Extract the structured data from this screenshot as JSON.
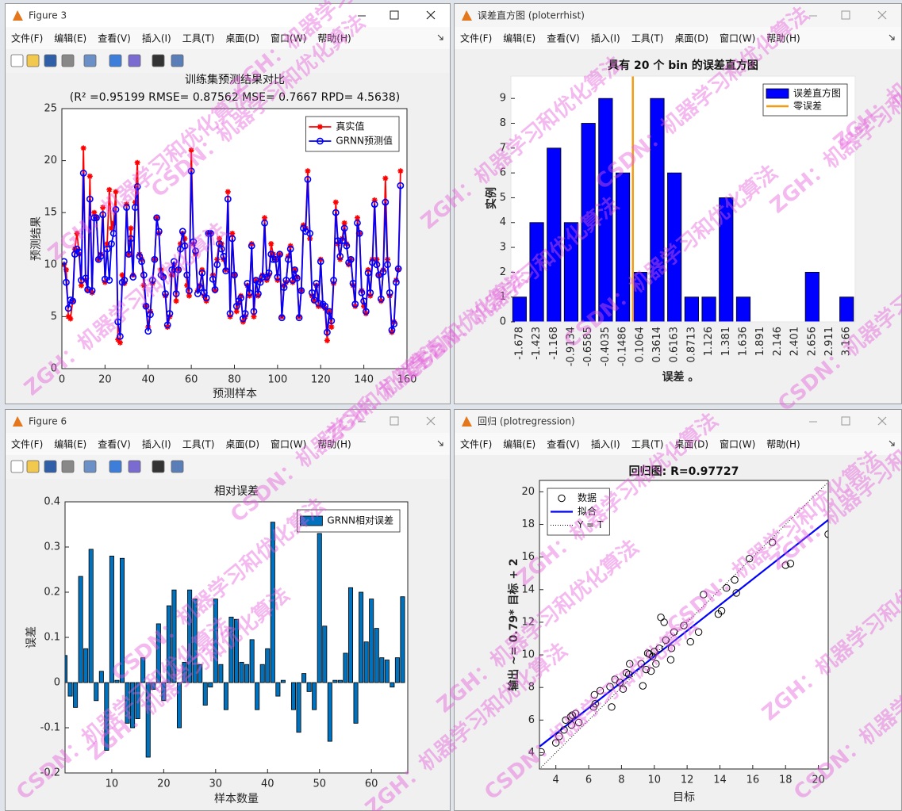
{
  "menu": [
    "文件(F)",
    "编辑(E)",
    "查看(V)",
    "插入(I)",
    "工具(T)",
    "桌面(D)",
    "窗口(W)",
    "帮助(H)"
  ],
  "windows": [
    {
      "title": "Figure 3"
    },
    {
      "title": "误差直方图 (ploterrhist)"
    },
    {
      "title": "Figure 6"
    },
    {
      "title": "回归 (plotregression)"
    }
  ],
  "watermark": [
    "ZGH：机器学习和优化算法",
    "CSDN：机器学习和优化算法"
  ],
  "chart_data": [
    {
      "type": "line",
      "title": "训练集预测结果对比",
      "subtitle": "(R² =0.95199 RMSE= 0.87562 MSE= 0.7667 RPD= 4.5638)",
      "x_label": "预测样本",
      "y_label": "预测结果",
      "legend": "upper right",
      "xlim": [
        0,
        160
      ],
      "xticks": [
        0,
        20,
        40,
        60,
        80,
        100,
        120,
        140,
        160
      ],
      "ylim": [
        0,
        25
      ],
      "yticks": [
        0,
        5,
        10,
        15,
        20,
        25
      ],
      "x": [
        1,
        2,
        3,
        4,
        5,
        6,
        7,
        8,
        9,
        10,
        11,
        12,
        13,
        14,
        15,
        16,
        17,
        18,
        19,
        20,
        21,
        22,
        23,
        24,
        25,
        26,
        27,
        28,
        29,
        30,
        31,
        32,
        33,
        34,
        35,
        36,
        37,
        38,
        39,
        40,
        41,
        42,
        43,
        44,
        45,
        46,
        47,
        48,
        49,
        50,
        51,
        52,
        53,
        54,
        55,
        56,
        57,
        58,
        59,
        60,
        61,
        62,
        63,
        64,
        65,
        66,
        67,
        68,
        69,
        70,
        71,
        72,
        73,
        74,
        75,
        76,
        77,
        78,
        79,
        80,
        81,
        82,
        83,
        84,
        85,
        86,
        87,
        88,
        89,
        90,
        91,
        92,
        93,
        94,
        95,
        96,
        97,
        98,
        99,
        100,
        101,
        102,
        103,
        104,
        105,
        106,
        107,
        108,
        109,
        110,
        111,
        112,
        113,
        114,
        115,
        116,
        117,
        118,
        119,
        120,
        121,
        122,
        123,
        124,
        125,
        126,
        127,
        128,
        129,
        130,
        131,
        132,
        133,
        134,
        135,
        136,
        137,
        138,
        139,
        140,
        141,
        142,
        143,
        144,
        145,
        146,
        147,
        148,
        149,
        150,
        151,
        152,
        153,
        154,
        155,
        156,
        157
      ],
      "series": [
        {
          "name": "真实值",
          "color": "#ff0000",
          "marker": "star",
          "values": [
            10,
            9.5,
            5,
            4.8,
            6.5,
            11.5,
            13,
            11,
            8,
            21.2,
            8.5,
            7.5,
            18.5,
            7.3,
            15,
            14.5,
            10.5,
            11,
            15.5,
            8.3,
            12,
            17.2,
            13.5,
            14,
            17,
            2.8,
            2.5,
            9,
            8.2,
            15.8,
            11,
            13.5,
            9,
            16,
            19.8,
            11,
            10.5,
            8,
            6,
            4,
            5.5,
            8.2,
            10.5,
            14.5,
            13,
            9.5,
            8.8,
            7,
            4,
            5,
            9,
            10,
            6.5,
            9.5,
            12,
            13,
            12.5,
            8,
            7,
            21,
            12,
            11,
            7.5,
            8,
            9.5,
            7,
            6.5,
            13,
            13,
            9,
            7.5,
            10.5,
            12.5,
            12,
            10.5,
            9.5,
            17,
            5,
            13,
            9,
            5.5,
            6.3,
            7,
            4.5,
            5,
            8,
            7,
            12,
            5,
            8.5,
            7,
            8.5,
            9,
            14.5,
            8.5,
            9,
            12,
            11,
            10.5,
            8.5,
            11,
            5,
            8,
            8.3,
            10.8,
            11.8,
            8.3,
            9.5,
            8.8,
            5,
            7.5,
            13.8,
            13.5,
            19,
            12.5,
            7,
            6.5,
            8,
            6,
            10.5,
            6,
            5.8,
            2.7,
            5.5,
            4,
            8.2,
            16,
            12,
            10.5,
            12.5,
            14,
            12,
            10,
            10.5,
            8,
            6,
            14.5,
            13,
            7.5,
            6,
            5.3,
            9.5,
            7,
            10.5,
            16.2,
            10.5,
            9,
            6.5,
            9.5,
            18.3,
            10.5,
            7,
            3.5,
            4.5,
            8.5,
            9.5,
            19
          ]
        },
        {
          "name": "GRNN预测值",
          "color": "#0000ff",
          "marker": "circle",
          "values": [
            10.3,
            8.3,
            5.8,
            6.6,
            6.5,
            11,
            11.5,
            11.2,
            8.5,
            18.8,
            8.7,
            7.6,
            16.3,
            7.5,
            14.5,
            14.5,
            10.5,
            10.8,
            14.8,
            8.6,
            11.5,
            8.5,
            12,
            13,
            15.3,
            4.5,
            3.1,
            8.3,
            8.5,
            15.5,
            11,
            12.5,
            8.8,
            15.5,
            17.5,
            10.8,
            10.3,
            9,
            6,
            3.6,
            5.2,
            8.5,
            10.5,
            14.5,
            13.2,
            9,
            8.8,
            7.2,
            4.2,
            5.3,
            9.5,
            10.3,
            7.2,
            9.5,
            11.5,
            13.2,
            11.8,
            9,
            7.5,
            19,
            12.2,
            11.3,
            7.2,
            7.8,
            9.2,
            7.3,
            6.8,
            13,
            13,
            8.6,
            7.6,
            10,
            12,
            11.5,
            10.8,
            9.4,
            16.3,
            5.3,
            12.5,
            9,
            6,
            6.5,
            6.8,
            4.8,
            5.3,
            8.2,
            7.3,
            11.8,
            5.5,
            8.5,
            7.2,
            8.3,
            8.8,
            14,
            8.8,
            9.2,
            11,
            10.5,
            10.5,
            8.8,
            11,
            4.9,
            7.8,
            8.5,
            10.5,
            11.5,
            8.5,
            9.5,
            8.7,
            4.9,
            7.5,
            13.5,
            13.2,
            18.2,
            13,
            7.3,
            6.6,
            8.2,
            6.3,
            10.3,
            6.2,
            6,
            3.5,
            5.5,
            4.6,
            8.5,
            15,
            12.3,
            10.8,
            12.3,
            13.5,
            11.8,
            10.2,
            10.5,
            8.2,
            6.2,
            14,
            13,
            7.3,
            6.5,
            5.5,
            9.2,
            7.3,
            10.2,
            15.8,
            10,
            9,
            6.7,
            9.3,
            16,
            10,
            7.3,
            3.7,
            4.3,
            8.3,
            9.6,
            17.6
          ]
        }
      ]
    },
    {
      "type": "bar",
      "title": "具有 20 个 bin 的误差直方图",
      "x_label": "误差 。",
      "y_label": "实例",
      "legend": "upper right",
      "categories": [
        -1.678,
        -1.423,
        -1.168,
        -0.9134,
        -0.6585,
        -0.4035,
        -0.1486,
        0.1064,
        0.3614,
        0.6163,
        0.8713,
        1.126,
        1.381,
        1.636,
        1.891,
        2.146,
        2.401,
        2.656,
        2.911,
        3.166
      ],
      "xlim": [
        -1.8055,
        3.2925
      ],
      "ylim": [
        0,
        9.9
      ],
      "yticks": [
        0,
        1,
        2,
        3,
        4,
        5,
        6,
        7,
        8,
        9
      ],
      "series": [
        {
          "name": "误差直方图",
          "color": "#0000ff",
          "values": [
            1,
            4,
            7,
            4,
            8,
            9,
            6,
            2,
            9,
            6,
            1,
            1,
            5,
            1,
            0,
            0,
            0,
            2,
            0,
            1
          ]
        }
      ],
      "zero_line": {
        "name": "零误差",
        "color": "#f39c12",
        "value": 0
      }
    },
    {
      "type": "bar",
      "title": "相对误差",
      "x_label": "样本数量",
      "y_label": "误差",
      "legend": "upper right",
      "x": [
        1,
        2,
        3,
        4,
        5,
        6,
        7,
        8,
        9,
        10,
        11,
        12,
        13,
        14,
        15,
        16,
        17,
        18,
        19,
        20,
        21,
        22,
        23,
        24,
        25,
        26,
        27,
        28,
        29,
        30,
        31,
        32,
        33,
        34,
        35,
        36,
        37,
        38,
        39,
        40,
        41,
        42,
        43,
        44,
        45,
        46,
        47,
        48,
        49,
        50,
        51,
        52,
        53,
        54,
        55,
        56,
        57,
        58,
        59,
        60,
        61,
        62,
        63,
        64,
        65,
        66
      ],
      "xlim": [
        1,
        67
      ],
      "xticks": [
        10,
        20,
        30,
        40,
        50,
        60
      ],
      "ylim": [
        -0.2,
        0.4
      ],
      "yticks": [
        -0.2,
        -0.1,
        0,
        0.1,
        0.2,
        0.3,
        0.4
      ],
      "series": [
        {
          "name": "GRNN相对误差",
          "color": "#0072bd",
          "values": [
            0.06,
            -0.03,
            -0.055,
            0.235,
            0.075,
            0.295,
            -0.04,
            0.025,
            -0.15,
            0.28,
            0.005,
            0.275,
            -0.09,
            -0.1,
            -0.08,
            0.055,
            -0.165,
            -0.015,
            0.13,
            -0.04,
            0.17,
            0.205,
            -0.1,
            0.045,
            0.205,
            0.185,
            0.04,
            -0.05,
            -0.01,
            0.185,
            0.04,
            -0.06,
            0.145,
            0.14,
            0.045,
            0.04,
            0.095,
            -0.06,
            0.04,
            0.075,
            0.355,
            -0.03,
            0.005,
            0,
            -0.06,
            -0.11,
            0.02,
            -0.02,
            -0.06,
            0.33,
            0.125,
            -0.13,
            0.005,
            0.005,
            0.065,
            0.21,
            -0.09,
            0.2,
            0.09,
            0.185,
            0.12,
            0.055,
            0.05,
            -0.01,
            0.055,
            0.19
          ]
        }
      ]
    },
    {
      "type": "scatter",
      "title": "回归图: R=0.97727",
      "x_label": "目标",
      "y_label": "输出 ~= 0.79* 目标 + 2",
      "legend": "upper left",
      "xlim": [
        3,
        20.6
      ],
      "xticks": [
        4,
        6,
        8,
        10,
        12,
        14,
        16,
        18,
        20
      ],
      "ylim": [
        3,
        20.7
      ],
      "yticks": [
        4,
        6,
        8,
        10,
        12,
        14,
        16,
        18,
        20
      ],
      "series": [
        {
          "name": "数据",
          "color": "#000000",
          "x": [
            3.1,
            4.0,
            4.2,
            4.5,
            4.6,
            4.9,
            5.0,
            5.2,
            5.4,
            4.95,
            6.3,
            6.4,
            6.35,
            6.7,
            7.3,
            7.4,
            7.6,
            7.9,
            8.1,
            8.3,
            8.5,
            8.45,
            9.2,
            9.3,
            9.5,
            9.6,
            9.8,
            9.9,
            10.1,
            10.3,
            10.4,
            10.6,
            10.7,
            11.0,
            11.05,
            11.2,
            11.8,
            12.2,
            12.7,
            13.0,
            13.9,
            14.1,
            14.4,
            14.9,
            15.0,
            15.8,
            17.2,
            18.0,
            18.3,
            20.6,
            10.0,
            9.7
          ],
          "values": [
            4.05,
            4.6,
            5.0,
            5.4,
            6.0,
            6.2,
            6.3,
            6.4,
            5.85,
            5.7,
            6.8,
            7.0,
            7.55,
            7.8,
            8.05,
            6.8,
            8.5,
            8.3,
            7.9,
            8.9,
            9.45,
            8.8,
            9.45,
            8.1,
            9.1,
            10.1,
            9.0,
            9.9,
            9.45,
            10.4,
            12.3,
            12.0,
            10.9,
            9.7,
            10.4,
            11.4,
            11.8,
            10.8,
            11.4,
            13.7,
            12.5,
            12.7,
            14.1,
            14.6,
            13.8,
            15.9,
            16.9,
            15.5,
            15.6,
            17.4,
            10.2,
            10.05
          ]
        }
      ],
      "fit": {
        "name": "拟合",
        "color": "#0000ff",
        "slope": 0.79,
        "intercept": 2
      },
      "identity": {
        "name": "Y = T",
        "color": "#000000"
      }
    }
  ]
}
